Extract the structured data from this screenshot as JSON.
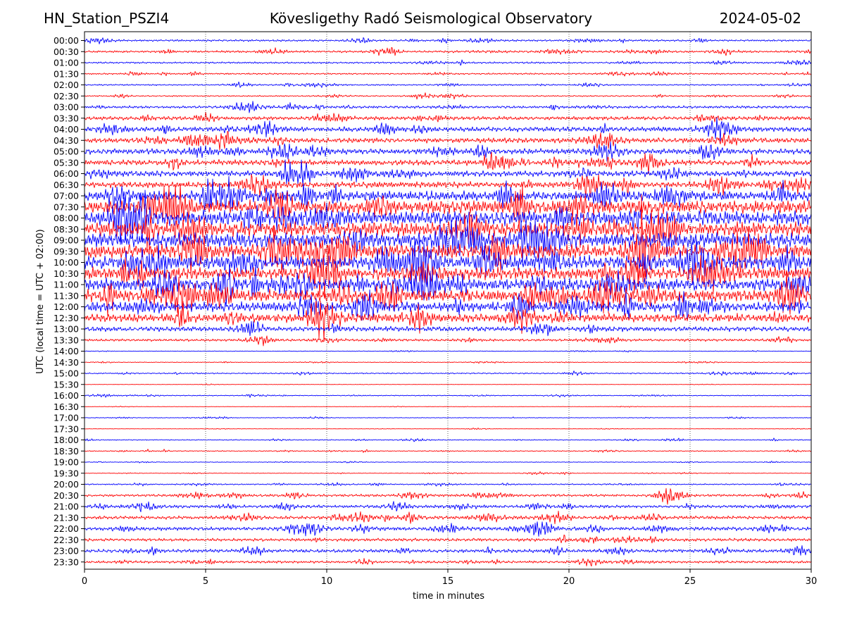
{
  "header": {
    "station": "HN_Station_PSZI4",
    "title": "Kövesligethy Radó Seismological Observatory",
    "date": "2024-05-02"
  },
  "chart_data": {
    "type": "line",
    "title": "Kövesligethy Radó Seismological Observatory",
    "xlabel": "time in minutes",
    "ylabel": "UTC (local time = UTC + 02:00)",
    "xlim": [
      0,
      30
    ],
    "x_ticks": [
      "0",
      "5",
      "10",
      "15",
      "20",
      "25",
      "30"
    ],
    "x_tick_values": [
      0,
      5,
      10,
      15,
      20,
      25,
      30
    ],
    "grid": "vertical dotted lines at each x tick",
    "row_labels": [
      "00:00",
      "00:30",
      "01:00",
      "01:30",
      "02:00",
      "02:30",
      "03:00",
      "03:30",
      "04:00",
      "04:30",
      "05:00",
      "05:30",
      "06:00",
      "06:30",
      "07:00",
      "07:30",
      "08:00",
      "08:30",
      "09:00",
      "09:30",
      "10:00",
      "10:30",
      "11:00",
      "11:30",
      "12:00",
      "12:30",
      "13:00",
      "13:30",
      "14:00",
      "14:30",
      "15:00",
      "15:30",
      "16:00",
      "16:30",
      "17:00",
      "17:30",
      "18:00",
      "18:30",
      "19:00",
      "19:30",
      "20:00",
      "20:30",
      "21:00",
      "21:30",
      "22:00",
      "22:30",
      "23:00",
      "23:30"
    ],
    "series_colors": [
      "#0000ff",
      "#ff0000"
    ],
    "relative_amplitude": [
      0.3,
      0.35,
      0.28,
      0.25,
      0.22,
      0.2,
      0.4,
      0.6,
      0.8,
      0.85,
      0.9,
      0.9,
      0.95,
      1.0,
      1.6,
      2.2,
      2.4,
      2.4,
      2.4,
      2.3,
      2.2,
      2.0,
      2.0,
      2.0,
      1.6,
      1.4,
      0.8,
      0.4,
      0.1,
      0.1,
      0.2,
      0.05,
      0.15,
      0.05,
      0.1,
      0.05,
      0.15,
      0.15,
      0.1,
      0.08,
      0.2,
      0.4,
      0.5,
      0.55,
      0.6,
      0.5,
      0.55,
      0.4
    ]
  }
}
